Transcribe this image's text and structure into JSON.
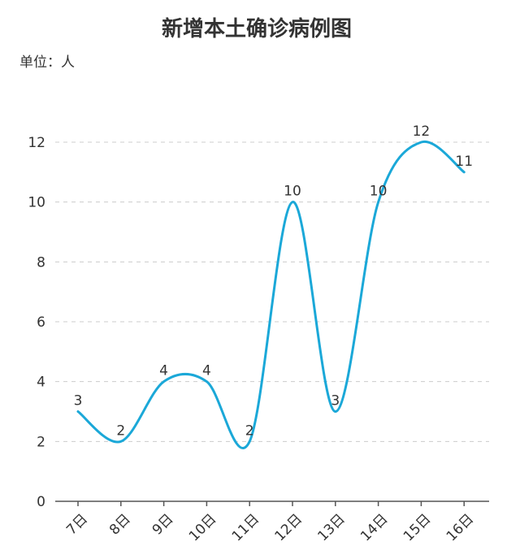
{
  "chart_data": {
    "type": "line",
    "title": "新增本土确诊病例图",
    "unit_label": "单位：人",
    "categories": [
      "7日",
      "8日",
      "9日",
      "10日",
      "11日",
      "12日",
      "13日",
      "14日",
      "15日",
      "16日"
    ],
    "series": [
      {
        "values": [
          3,
          2,
          4,
          4,
          2,
          10,
          3,
          10,
          12,
          11
        ],
        "color": "#1ba8d8"
      }
    ],
    "yticks": [
      "0",
      "2",
      "4",
      "6",
      "8",
      "10",
      "12"
    ],
    "ylim": [
      0,
      12
    ],
    "smooth": true,
    "grid": true,
    "data_labels": true
  }
}
